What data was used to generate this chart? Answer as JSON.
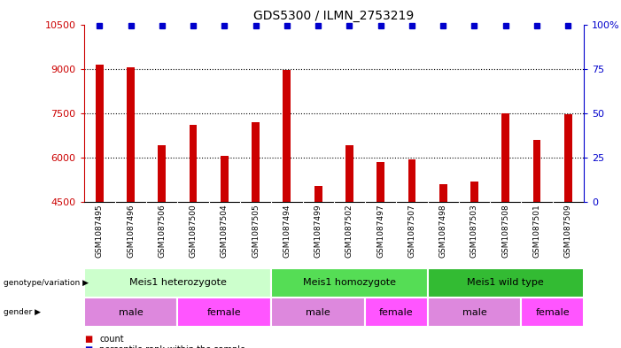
{
  "title": "GDS5300 / ILMN_2753219",
  "samples": [
    "GSM1087495",
    "GSM1087496",
    "GSM1087506",
    "GSM1087500",
    "GSM1087504",
    "GSM1087505",
    "GSM1087494",
    "GSM1087499",
    "GSM1087502",
    "GSM1087497",
    "GSM1087507",
    "GSM1087498",
    "GSM1087503",
    "GSM1087508",
    "GSM1087501",
    "GSM1087509"
  ],
  "counts": [
    9150,
    9050,
    6400,
    7100,
    6050,
    7200,
    8950,
    5050,
    6400,
    5850,
    5950,
    5100,
    5200,
    7500,
    6600,
    7450
  ],
  "percentiles": [
    100,
    100,
    100,
    100,
    100,
    100,
    100,
    100,
    100,
    100,
    100,
    100,
    100,
    100,
    100,
    100
  ],
  "ylim_left": [
    4500,
    10500
  ],
  "ylim_right": [
    0,
    100
  ],
  "yticks_left": [
    4500,
    6000,
    7500,
    9000,
    10500
  ],
  "yticks_right": [
    0,
    25,
    50,
    75,
    100
  ],
  "bar_color": "#cc0000",
  "dot_color": "#0000cc",
  "grid_color": "#000000",
  "genotype_groups": [
    {
      "label": "Meis1 heterozygote",
      "start": 0,
      "end": 6,
      "color": "#ccffcc"
    },
    {
      "label": "Meis1 homozygote",
      "start": 6,
      "end": 11,
      "color": "#55dd55"
    },
    {
      "label": "Meis1 wild type",
      "start": 11,
      "end": 16,
      "color": "#33bb33"
    }
  ],
  "gender_groups": [
    {
      "label": "male",
      "start": 0,
      "end": 3,
      "color": "#dd88dd"
    },
    {
      "label": "female",
      "start": 3,
      "end": 6,
      "color": "#ff55ff"
    },
    {
      "label": "male",
      "start": 6,
      "end": 9,
      "color": "#dd88dd"
    },
    {
      "label": "female",
      "start": 9,
      "end": 11,
      "color": "#ff55ff"
    },
    {
      "label": "male",
      "start": 11,
      "end": 14,
      "color": "#dd88dd"
    },
    {
      "label": "female",
      "start": 14,
      "end": 16,
      "color": "#ff55ff"
    }
  ],
  "bg_color": "#ffffff",
  "sample_bg_color": "#c8c8c8"
}
